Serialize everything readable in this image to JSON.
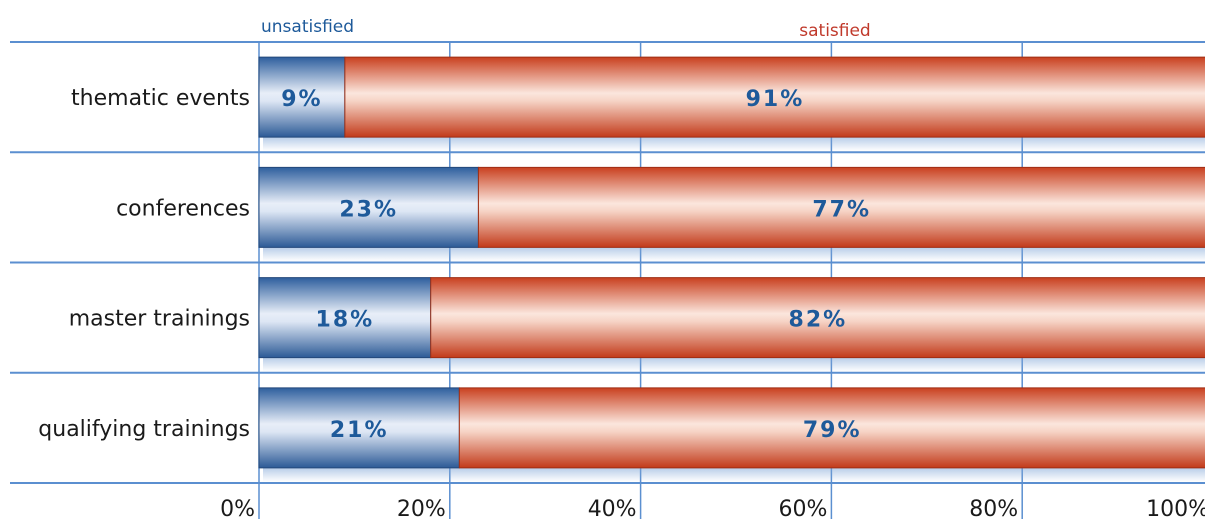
{
  "chart_data": {
    "type": "bar",
    "orientation": "horizontal",
    "stacked": true,
    "categories": [
      "thematic events",
      "conferences",
      "master trainings",
      "qualifying trainings"
    ],
    "series": [
      {
        "name": "unsatisfied",
        "values": [
          9,
          23,
          18,
          21
        ],
        "labels": [
          "9%",
          "23%",
          "18%",
          "21%"
        ],
        "color": "#3f6fae"
      },
      {
        "name": "satisfied",
        "values": [
          91,
          77,
          82,
          79
        ],
        "labels": [
          "91%",
          "77%",
          "82%",
          "79%"
        ],
        "color": "#d9532f"
      }
    ],
    "x_ticks": [
      "0%",
      "20%",
      "40%",
      "60%",
      "80%",
      "100%"
    ],
    "xlim": [
      0,
      100
    ],
    "grid": true,
    "legend": {
      "position": "top",
      "entries": [
        "unsatisfied",
        "satisfied"
      ]
    },
    "colors": {
      "grid": "#5b8fd0",
      "label": "#1e5a9a",
      "unsatisfied_text": "#1e5a9a",
      "satisfied_text": "#c0392b"
    }
  }
}
